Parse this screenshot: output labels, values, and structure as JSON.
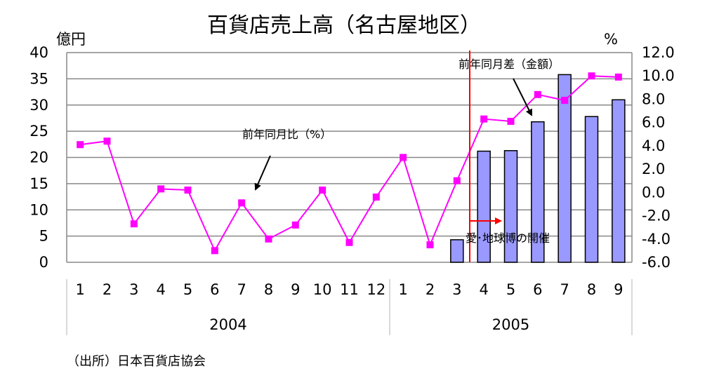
{
  "chart_data": {
    "type": "bar",
    "title": "百貨店売上高（名古屋地区）",
    "ylabel_left": "億円",
    "ylabel_right": "%",
    "ylim_left": [
      0,
      40
    ],
    "yticks_left": [
      "0",
      "5",
      "10",
      "15",
      "20",
      "25",
      "30",
      "35",
      "40"
    ],
    "ylim_right": [
      -6.0,
      12.0
    ],
    "yticks_right": [
      "-6.0",
      "-4.0",
      "-2.0",
      "0.0",
      "2.0",
      "4.0",
      "6.0",
      "8.0",
      "10.0",
      "12.0"
    ],
    "categories": [
      "1",
      "2",
      "3",
      "4",
      "5",
      "6",
      "7",
      "8",
      "9",
      "10",
      "11",
      "12",
      "1",
      "2",
      "3",
      "4",
      "5",
      "6",
      "7",
      "8",
      "9"
    ],
    "years": [
      {
        "label": "2004",
        "start": 0,
        "end": 11
      },
      {
        "label": "2005",
        "start": 12,
        "end": 20
      }
    ],
    "grid": "horizontal",
    "series": [
      {
        "name": "前年同月差（金額）",
        "type": "bar",
        "axis": "left",
        "color": "#9999ff",
        "values": [
          null,
          null,
          null,
          null,
          null,
          null,
          null,
          null,
          null,
          null,
          null,
          null,
          null,
          null,
          4.3,
          21.2,
          21.3,
          26.8,
          35.8,
          27.8,
          31.0
        ]
      },
      {
        "name": "前年同月比（%）",
        "type": "line",
        "axis": "right",
        "color": "#ff00ff",
        "values": [
          4.1,
          4.4,
          -2.7,
          0.3,
          0.2,
          -5.0,
          -0.9,
          -4.0,
          -2.8,
          0.2,
          -4.3,
          -0.4,
          3.0,
          -4.5,
          1.0,
          6.3,
          6.1,
          8.4,
          7.9,
          10.0,
          9.9
        ]
      }
    ],
    "annotations": {
      "bar_label": "前年同月差（金額）",
      "line_label": "前年同月比（%）",
      "event_label": "愛･地球博の開催",
      "event_index": 14.5
    },
    "source": "（出所）日本百貨店協会"
  }
}
